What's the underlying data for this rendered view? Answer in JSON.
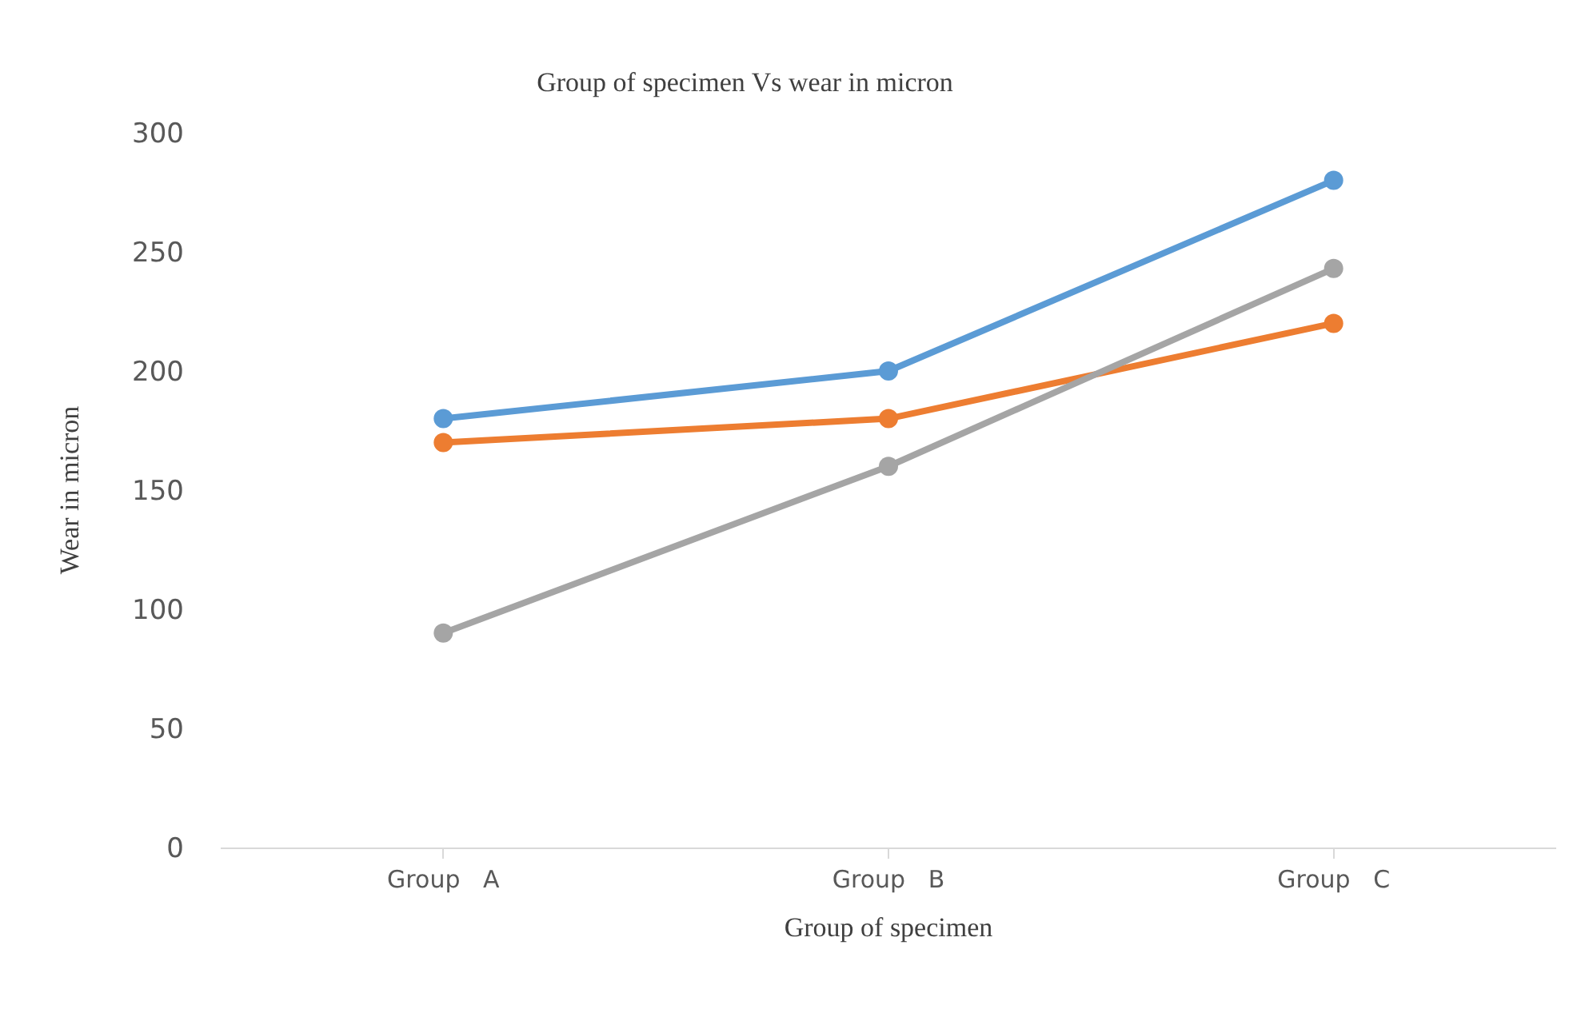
{
  "chart_data": {
    "type": "line",
    "title": "Group of specimen Vs wear in micron",
    "xlabel": "Group of specimen",
    "ylabel": "Wear in micron",
    "categories": [
      "Group   A",
      "Group   B",
      "Group   C"
    ],
    "series": [
      {
        "color": "#5b9bd5",
        "values": [
          180,
          200,
          280
        ]
      },
      {
        "color": "#ed7d31",
        "values": [
          170,
          180,
          220
        ]
      },
      {
        "color": "#a5a5a5",
        "values": [
          90,
          160,
          243
        ]
      }
    ],
    "ylim": [
      0,
      300
    ],
    "yticks": [
      0,
      50,
      100,
      150,
      200,
      250,
      300
    ],
    "marker": "circle",
    "line_style": "solid"
  }
}
